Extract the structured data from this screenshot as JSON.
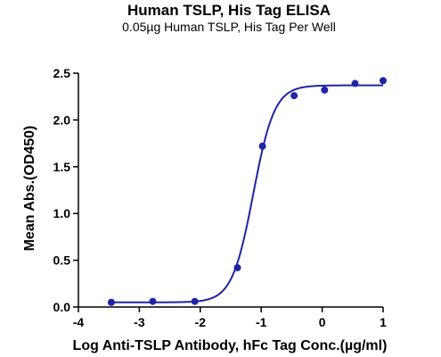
{
  "chart_data": {
    "type": "scatter",
    "title": "Human TSLP, His Tag ELISA",
    "subtitle": "0.05µg Human TSLP, His Tag Per Well",
    "xlabel": "Log Anti-TSLP Antibody, hFc Tag Conc.(µg/ml)",
    "ylabel": "Mean Abs.(OD450)",
    "xlim": [
      -4,
      1
    ],
    "ylim": [
      0,
      2.5
    ],
    "x_ticks": [
      -4,
      -3,
      -2,
      -1,
      0,
      1
    ],
    "y_ticks": [
      0.0,
      0.5,
      1.0,
      1.5,
      2.0,
      2.5
    ],
    "x_tick_labels": [
      "-4",
      "-3",
      "-2",
      "-1",
      "0",
      "1"
    ],
    "y_tick_labels": [
      "0.0",
      "0.5",
      "1.0",
      "1.5",
      "2.0",
      "2.5"
    ],
    "grid": false,
    "legend": "none",
    "series": [
      {
        "points": [
          {
            "x": -3.46,
            "y": 0.05
          },
          {
            "x": -2.78,
            "y": 0.06
          },
          {
            "x": -2.09,
            "y": 0.06
          },
          {
            "x": -1.39,
            "y": 0.42
          },
          {
            "x": -0.98,
            "y": 1.72
          },
          {
            "x": -0.46,
            "y": 2.26
          },
          {
            "x": 0.04,
            "y": 2.32
          },
          {
            "x": 0.54,
            "y": 2.39
          },
          {
            "x": 1.0,
            "y": 2.42
          }
        ],
        "fit": {
          "model": "4PL",
          "bottom": 0.05,
          "top": 2.37,
          "log_ec50": -1.13,
          "hill": 2.5,
          "x_start": -3.46,
          "x_end": 1.0
        }
      }
    ],
    "color": "#1f24a6"
  }
}
